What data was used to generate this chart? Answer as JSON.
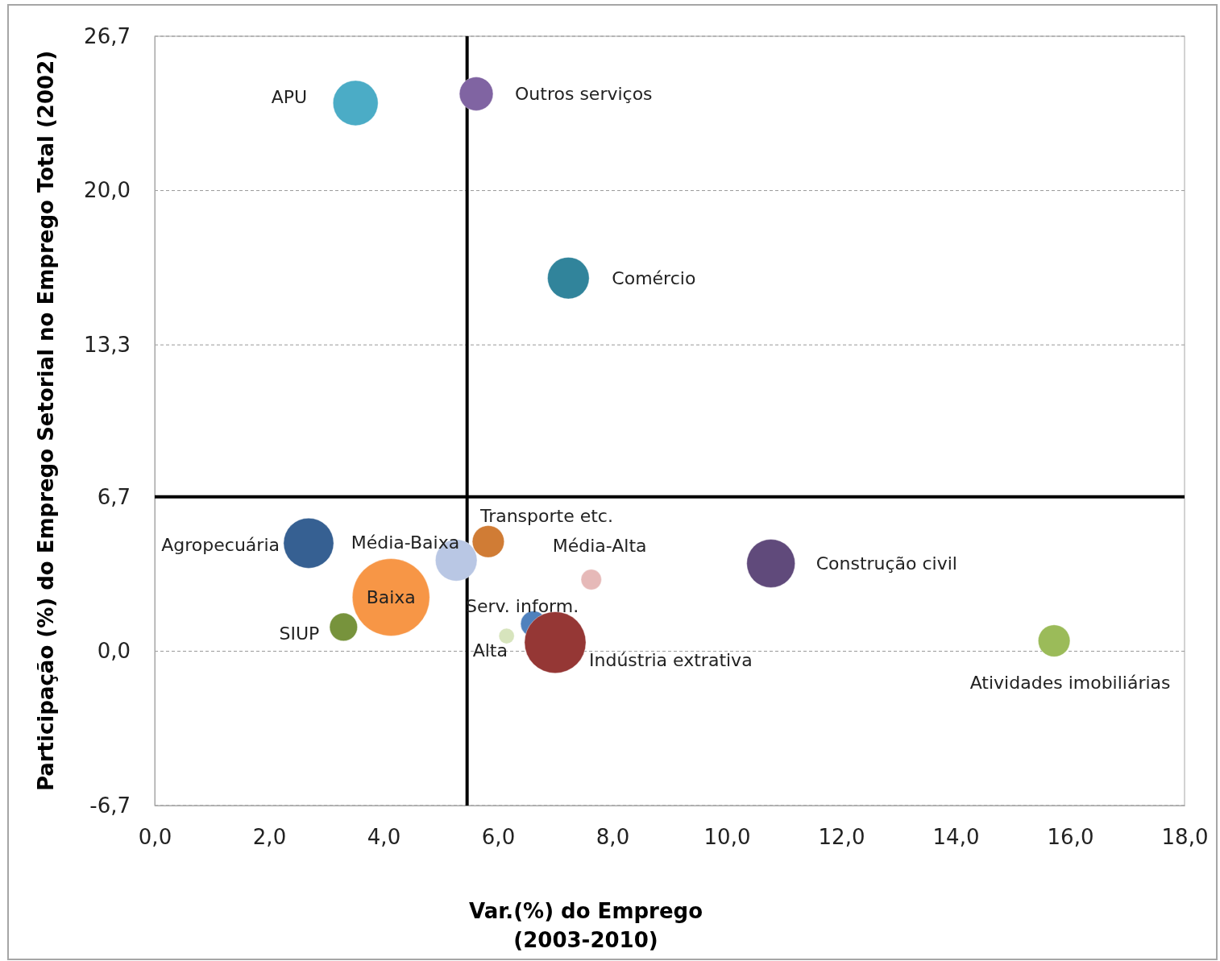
{
  "chart_data": {
    "type": "bubble",
    "xlabel": "Var.(%) do Emprego\n(2003-2010)",
    "ylabel": "Participação (%) do Emprego Setorial no Emprego Total (2002)",
    "xlim": [
      0,
      18
    ],
    "ylim": [
      -6.7,
      26.7
    ],
    "xticks": [
      {
        "value": 0,
        "label": "0,0"
      },
      {
        "value": 2,
        "label": "2,0"
      },
      {
        "value": 4,
        "label": "4,0"
      },
      {
        "value": 6,
        "label": "6,0"
      },
      {
        "value": 8,
        "label": "8,0"
      },
      {
        "value": 10,
        "label": "10,0"
      },
      {
        "value": 12,
        "label": "12,0"
      },
      {
        "value": 14,
        "label": "14,0"
      },
      {
        "value": 16,
        "label": "16,0"
      },
      {
        "value": 18,
        "label": "18,0"
      }
    ],
    "yticks": [
      {
        "value": -6.7,
        "label": "-6,7"
      },
      {
        "value": 0,
        "label": "0,0"
      },
      {
        "value": 6.7,
        "label": "6,7"
      },
      {
        "value": 13.3,
        "label": "13,3"
      },
      {
        "value": 20,
        "label": "20,0"
      },
      {
        "value": 26.7,
        "label": "26,7"
      }
    ],
    "grid": "y",
    "ref_lines": [
      {
        "axis": "x",
        "value": 5.46,
        "color": "#000000"
      },
      {
        "axis": "y",
        "value": 6.7,
        "color": "#000000"
      }
    ],
    "series": [
      {
        "name": "APU",
        "color": "#4bacc6",
        "x": [
          3.51
        ],
        "values": [
          23.8
        ],
        "sizes": [
          0.34
        ]
      },
      {
        "name": "Outros serviços",
        "color": "#8064a2",
        "x": [
          5.62
        ],
        "values": [
          24.2
        ],
        "sizes": [
          0.19
        ]
      },
      {
        "name": "Comércio",
        "color": "#31849b",
        "x": [
          7.23
        ],
        "values": [
          16.2
        ],
        "sizes": [
          0.29
        ]
      },
      {
        "name": "Agropecuária",
        "color": "#366092",
        "x": [
          2.69
        ],
        "values": [
          4.69
        ],
        "sizes": [
          0.42
        ]
      },
      {
        "name": "Média-Baixa",
        "color": "#b9c7e4",
        "x": [
          5.27
        ],
        "values": [
          3.95
        ],
        "sizes": [
          0.29
        ]
      },
      {
        "name": "Transporte etc.",
        "color": "#d07c35",
        "x": [
          5.83
        ],
        "values": [
          4.76
        ],
        "sizes": [
          0.17
        ]
      },
      {
        "name": "Baixa",
        "color": "#f79646",
        "x": [
          4.13
        ],
        "values": [
          2.34
        ],
        "sizes": [
          1
        ]
      },
      {
        "name": "Média-Alta",
        "color": "#e6b9b8",
        "x": [
          7.63
        ],
        "values": [
          3.11
        ],
        "sizes": [
          0.07
        ]
      },
      {
        "name": "Construção civil",
        "color": "#604a7b",
        "x": [
          10.77
        ],
        "values": [
          3.81
        ],
        "sizes": [
          0.39
        ]
      },
      {
        "name": "SIUP",
        "color": "#77933c",
        "x": [
          3.3
        ],
        "values": [
          1.05
        ],
        "sizes": [
          0.13
        ]
      },
      {
        "name": "Serv. inform.",
        "color": "#4f81bd",
        "x": [
          6.62
        ],
        "values": [
          1.19
        ],
        "sizes": [
          0.11
        ]
      },
      {
        "name": "Alta",
        "color": "#d7e4bd",
        "x": [
          6.15
        ],
        "values": [
          0.66
        ],
        "sizes": [
          0.04
        ]
      },
      {
        "name": "Indústria extrativa",
        "color": "#953735",
        "x": [
          7.0
        ],
        "values": [
          0.38
        ],
        "sizes": [
          0.63
        ]
      },
      {
        "name": "Atividades imobiliárias",
        "color": "#9bbb59",
        "x": [
          15.72
        ],
        "values": [
          0.45
        ],
        "sizes": [
          0.17
        ]
      }
    ]
  }
}
